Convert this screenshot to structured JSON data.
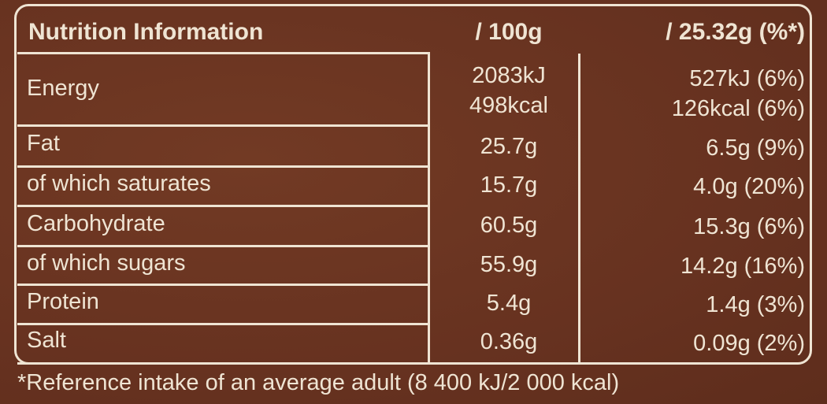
{
  "header": {
    "title": "Nutrition Information",
    "col1": "/ 100g",
    "col2": "/ 25.32g (%*)"
  },
  "rows": [
    {
      "label": "Energy",
      "per100": "2083kJ",
      "per100b": "498kcal",
      "perPortion": "527kJ (6%)",
      "perPortionb": "126kcal (6%)"
    },
    {
      "label": "Fat",
      "per100": "25.7g",
      "perPortion": "6.5g (9%)"
    },
    {
      "label": "of which saturates",
      "per100": "15.7g",
      "perPortion": "4.0g (20%)"
    },
    {
      "label": "Carbohydrate",
      "per100": "60.5g",
      "perPortion": "15.3g (6%)"
    },
    {
      "label": "of which sugars",
      "per100": "55.9g",
      "perPortion": "14.2g (16%)"
    },
    {
      "label": "Protein",
      "per100": "5.4g",
      "perPortion": "1.4g (3%)"
    },
    {
      "label": "Salt",
      "per100": "0.36g",
      "perPortion": "0.09g (2%)"
    }
  ],
  "footer": "*Reference intake of an average adult (8 400 kJ/2 000 kcal)",
  "colors": {
    "background": "#6a3420",
    "text": "#efe4d3"
  }
}
